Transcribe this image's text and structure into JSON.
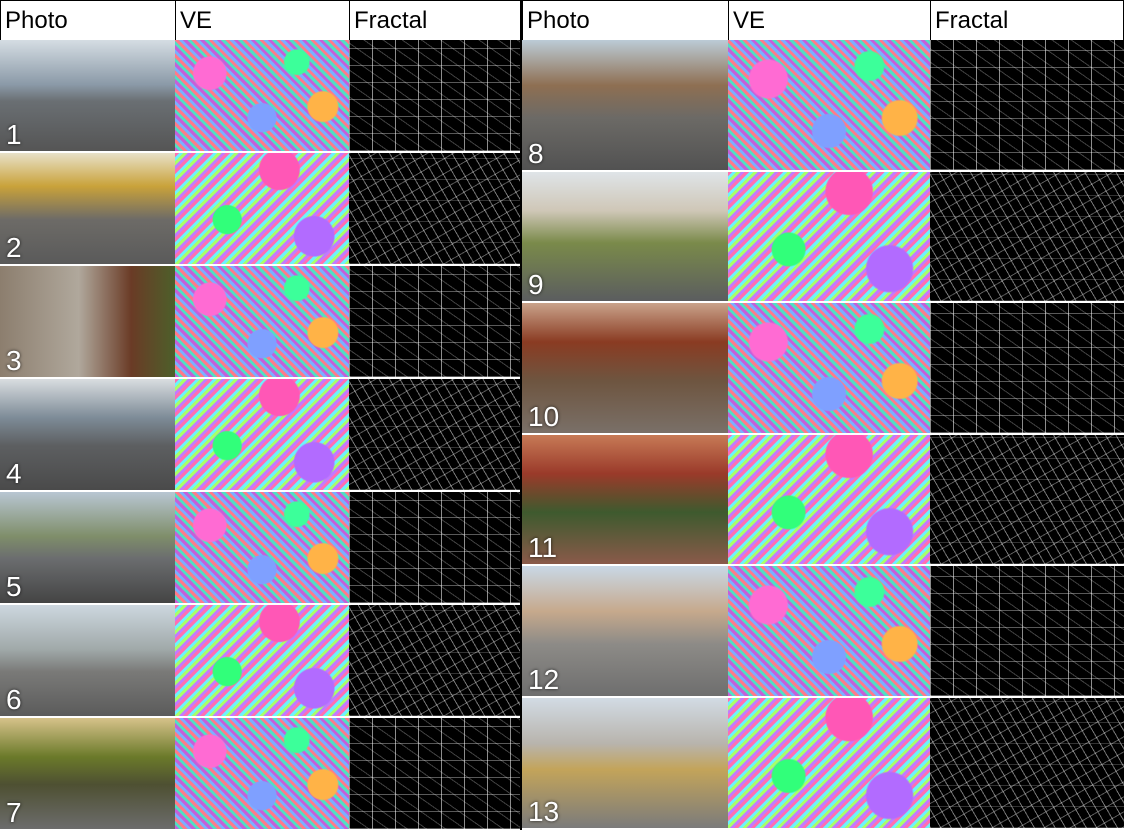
{
  "left_panel": {
    "headers": [
      "Photo",
      "VE",
      "Fractal"
    ],
    "rows": [
      {
        "label": "1"
      },
      {
        "label": "2"
      },
      {
        "label": "3"
      },
      {
        "label": "4"
      },
      {
        "label": "5"
      },
      {
        "label": "6"
      },
      {
        "label": "7"
      }
    ]
  },
  "right_panel": {
    "headers": [
      "Photo",
      "VE",
      "Fractal"
    ],
    "rows": [
      {
        "label": "8"
      },
      {
        "label": "9"
      },
      {
        "label": "10"
      },
      {
        "label": "11"
      },
      {
        "label": "12"
      },
      {
        "label": "13"
      }
    ]
  }
}
